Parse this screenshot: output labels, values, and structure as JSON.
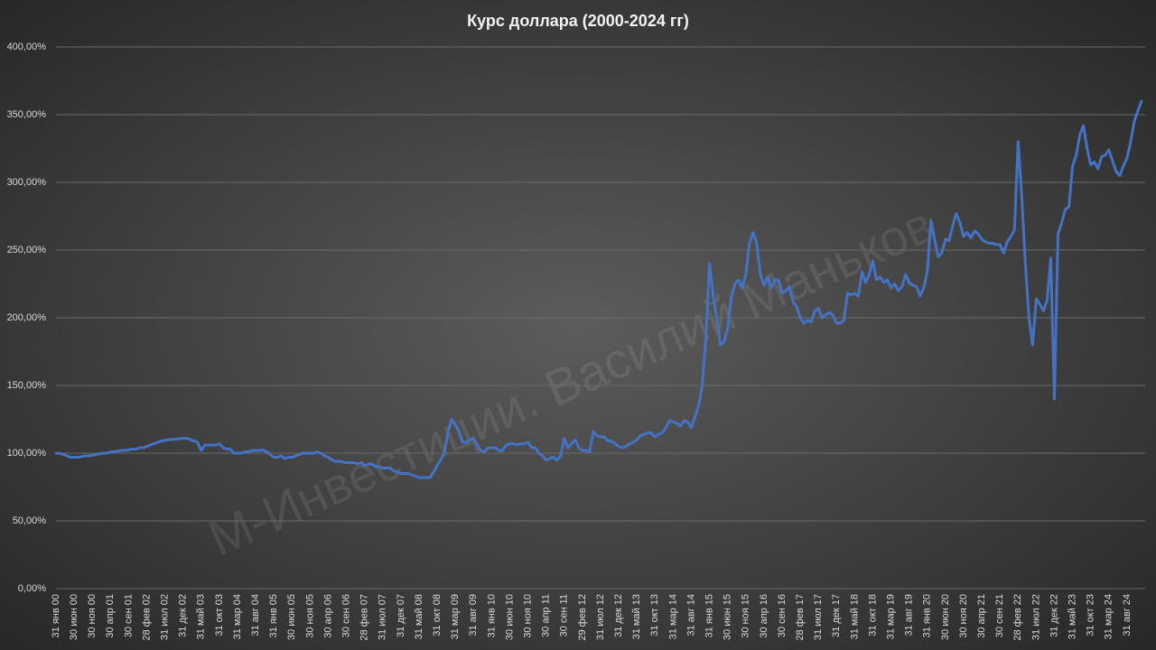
{
  "chart_data": {
    "type": "line",
    "title": "Курс доллара (2000-2024 гг)",
    "watermark": "М-Инвестиции. Василий Маньков",
    "categories": [
      "31 янв 00",
      null,
      null,
      null,
      null,
      "30 июн 00",
      null,
      null,
      null,
      null,
      "30 ноя 00",
      null,
      null,
      null,
      null,
      "30 апр 01",
      null,
      null,
      null,
      null,
      "30 сен 01",
      null,
      null,
      null,
      null,
      "28 фев 02",
      null,
      null,
      null,
      null,
      "31 июл 02",
      null,
      null,
      null,
      null,
      "31 дек 02",
      null,
      null,
      null,
      null,
      "31 май 03",
      null,
      null,
      null,
      null,
      "31 окт 03",
      null,
      null,
      null,
      null,
      "31 мар 04",
      null,
      null,
      null,
      null,
      "31 авг 04",
      null,
      null,
      null,
      null,
      "31 янв 05",
      null,
      null,
      null,
      null,
      "30 июн 05",
      null,
      null,
      null,
      null,
      "30 ноя 05",
      null,
      null,
      null,
      null,
      "30 апр 06",
      null,
      null,
      null,
      null,
      "30 сен 06",
      null,
      null,
      null,
      null,
      "28 фев 07",
      null,
      null,
      null,
      null,
      "31 июл 07",
      null,
      null,
      null,
      null,
      "31 дек 07",
      null,
      null,
      null,
      null,
      "31 май 08",
      null,
      null,
      null,
      null,
      "31 окт 08",
      null,
      null,
      null,
      null,
      "31 мар 09",
      null,
      null,
      null,
      null,
      "31 авг 09",
      null,
      null,
      null,
      null,
      "31 янв 10",
      null,
      null,
      null,
      null,
      "30 июн 10",
      null,
      null,
      null,
      null,
      "30 ноя 10",
      null,
      null,
      null,
      null,
      "30 апр 11",
      null,
      null,
      null,
      null,
      "30 сен 11",
      null,
      null,
      null,
      null,
      "29 фев 12",
      null,
      null,
      null,
      null,
      "31 июл 12",
      null,
      null,
      null,
      null,
      "31 дек 12",
      null,
      null,
      null,
      null,
      "31 май 13",
      null,
      null,
      null,
      null,
      "31 окт 13",
      null,
      null,
      null,
      null,
      "31 мар 14",
      null,
      null,
      null,
      null,
      "31 авг 14",
      null,
      null,
      null,
      null,
      "31 янв 15",
      null,
      null,
      null,
      null,
      "30 июн 15",
      null,
      null,
      null,
      null,
      "30 ноя 15",
      null,
      null,
      null,
      null,
      "30 апр 16",
      null,
      null,
      null,
      null,
      "30 сен 16",
      null,
      null,
      null,
      null,
      "28 фев 17",
      null,
      null,
      null,
      null,
      "31 июл 17",
      null,
      null,
      null,
      null,
      "31 дек 17",
      null,
      null,
      null,
      null,
      "31 май 18",
      null,
      null,
      null,
      null,
      "31 окт 18",
      null,
      null,
      null,
      null,
      "31 мар 19",
      null,
      null,
      null,
      null,
      "31 авг 19",
      null,
      null,
      null,
      null,
      "31 янв 20",
      null,
      null,
      null,
      null,
      "30 июн 20",
      null,
      null,
      null,
      null,
      "30 ноя 20",
      null,
      null,
      null,
      null,
      "30 апр 21",
      null,
      null,
      null,
      null,
      "30 сен 21",
      null,
      null,
      null,
      null,
      "28 фев 22",
      null,
      null,
      null,
      null,
      "31 июл 22",
      null,
      null,
      null,
      null,
      "31 дек 22",
      null,
      null,
      null,
      null,
      "31 май 23",
      null,
      null,
      null,
      null,
      "31 окт 23",
      null,
      null,
      null,
      null,
      "31 мар 24",
      null,
      null,
      null,
      null,
      "31 авг 24",
      null,
      null,
      null,
      null
    ],
    "series": [
      {
        "color": "#4472c4",
        "values": [
          100,
          100,
          99,
          98,
          97,
          97,
          97,
          97.5,
          98,
          98,
          98.5,
          99,
          99.5,
          100,
          100,
          101,
          101,
          101.5,
          102,
          102,
          102.5,
          103,
          103,
          104,
          104,
          105,
          106,
          107,
          108,
          109,
          109.5,
          110,
          110,
          110.5,
          110.5,
          111,
          111,
          110,
          109,
          108,
          102,
          106,
          106,
          106,
          106,
          107,
          104,
          103,
          103,
          100,
          100,
          100,
          101,
          101,
          102,
          102,
          102,
          102.5,
          101,
          99,
          97,
          97,
          98,
          96,
          97,
          97,
          98,
          99,
          100,
          100,
          100,
          100,
          101,
          100,
          98,
          97,
          95,
          94,
          94,
          93.5,
          93,
          93,
          93,
          92,
          93,
          91,
          92,
          92,
          90,
          90,
          89,
          89,
          89,
          87,
          86,
          85,
          85,
          85,
          84,
          83,
          82,
          82,
          82,
          82,
          86,
          91,
          95,
          101,
          116,
          125,
          121,
          116,
          108,
          108,
          110,
          111,
          106,
          102,
          101,
          104,
          104,
          104,
          102,
          102,
          106,
          107,
          107,
          106,
          107,
          107,
          108,
          104,
          104,
          100,
          98,
          95,
          96,
          97,
          95,
          98,
          111,
          104,
          107,
          110,
          104,
          102,
          102,
          101,
          116,
          113,
          112,
          112,
          109,
          109,
          107,
          105,
          104,
          105,
          107,
          108,
          110,
          113,
          114,
          115,
          115,
          112,
          114,
          115,
          119,
          124,
          123,
          122,
          120,
          124,
          123,
          119,
          127,
          135,
          150,
          185,
          240,
          216,
          200,
          180,
          182,
          192,
          215,
          225,
          228,
          222,
          232,
          255,
          263,
          255,
          232,
          224,
          230,
          222,
          228,
          228,
          218,
          220,
          223,
          212,
          208,
          200,
          196,
          198,
          197,
          205,
          207,
          200,
          202,
          204,
          202,
          196,
          196,
          198,
          218,
          217,
          218,
          216,
          234,
          226,
          232,
          242,
          228,
          230,
          226,
          228,
          222,
          225,
          220,
          223,
          232,
          226,
          224,
          223,
          216,
          222,
          234,
          272,
          258,
          245,
          248,
          258,
          257,
          268,
          277,
          270,
          260,
          263,
          259,
          264,
          262,
          258,
          256,
          255,
          255,
          254,
          254,
          248,
          256,
          260,
          265,
          330,
          290,
          240,
          200,
          180,
          214,
          210,
          205,
          213,
          244,
          140,
          262,
          270,
          280,
          282,
          312,
          320,
          335,
          342,
          325,
          313,
          315,
          310,
          319,
          320,
          324,
          316,
          308,
          305,
          312,
          318,
          330,
          345,
          353,
          360
        ]
      }
    ],
    "ylim": [
      0,
      400
    ],
    "yticks": [
      {
        "value": 0,
        "label": "0,00%"
      },
      {
        "value": 50,
        "label": "50,00%"
      },
      {
        "value": 100,
        "label": "100,00%"
      },
      {
        "value": 150,
        "label": "150,00%"
      },
      {
        "value": 200,
        "label": "200,00%"
      },
      {
        "value": 250,
        "label": "250,00%"
      },
      {
        "value": 300,
        "label": "300,00%"
      },
      {
        "value": 350,
        "label": "350,00%"
      },
      {
        "value": 400,
        "label": "400,00%"
      }
    ],
    "grid": true
  }
}
